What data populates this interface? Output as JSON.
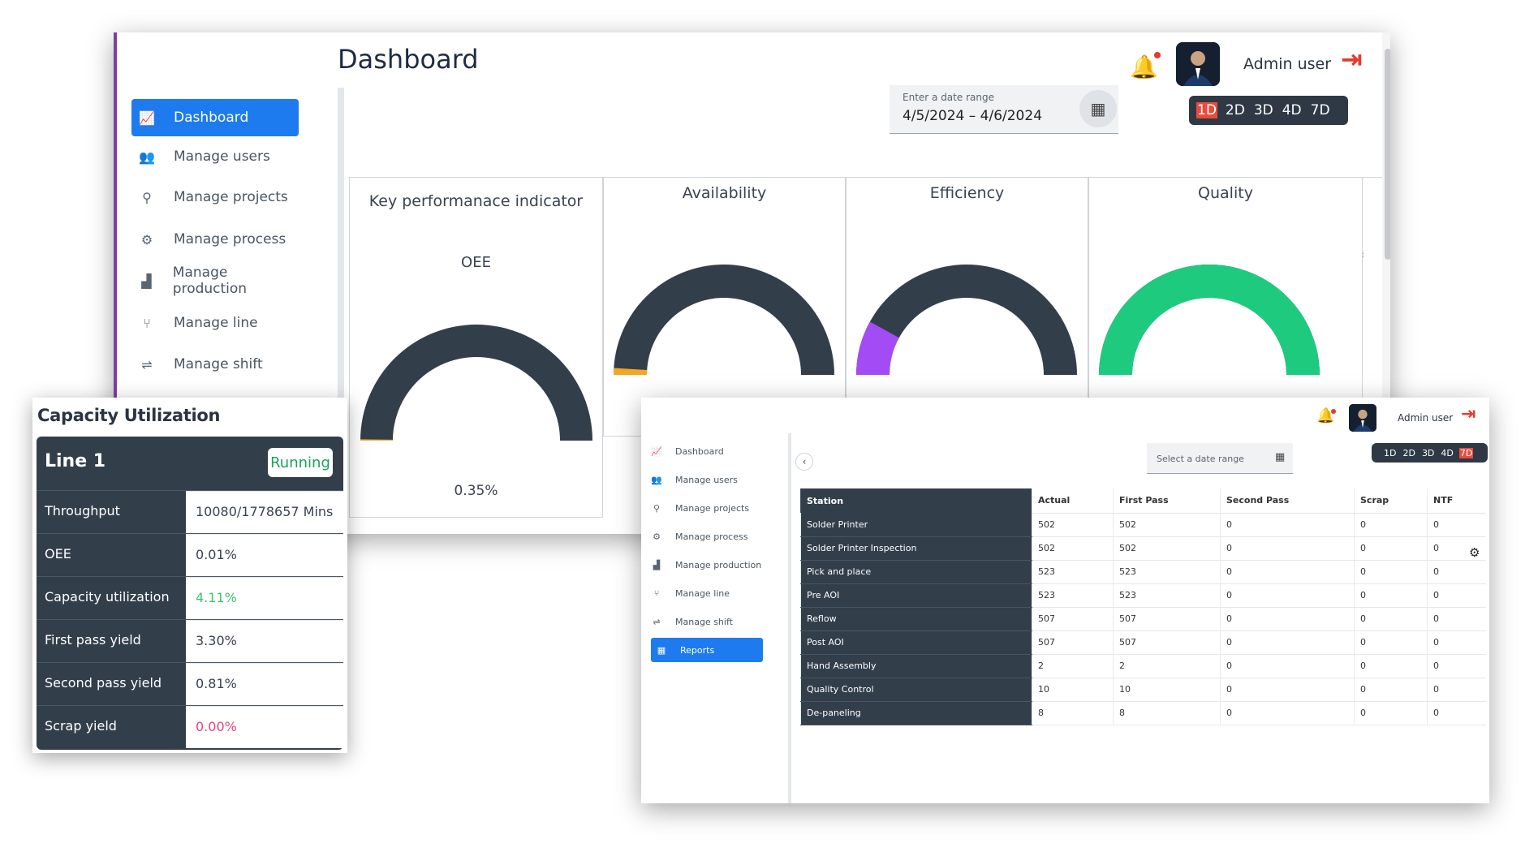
{
  "main": {
    "title": "Dashboard",
    "user_name": "Admin user",
    "sidebar": [
      {
        "label": "Dashboard",
        "icon": "line-chart-icon",
        "glyph": "📈"
      },
      {
        "label": "Manage users",
        "icon": "users-icon",
        "glyph": "👥"
      },
      {
        "label": "Manage projects",
        "icon": "project-tree-icon",
        "glyph": "⚲"
      },
      {
        "label": "Manage process",
        "icon": "chip-icon",
        "glyph": "⚙"
      },
      {
        "label": "Manage production",
        "icon": "factory-icon",
        "glyph": "▟"
      },
      {
        "label": "Manage line",
        "icon": "fork-icon",
        "glyph": "⑂"
      },
      {
        "label": "Manage shift",
        "icon": "shift-icon",
        "glyph": "⇌"
      }
    ],
    "date_range": {
      "label": "Enter a date range",
      "value": "4/5/2024 – 4/6/2024"
    },
    "day_buttons": [
      "1D",
      "2D",
      "3D",
      "4D",
      "7D"
    ],
    "selected_day": "1D",
    "kpi": {
      "title": "Key performanace indicator",
      "subtitle": "OEE",
      "value_text": "0.35%"
    },
    "gauges": [
      {
        "title": "Availability",
        "value": 0.02,
        "color": "#f5a623"
      },
      {
        "title": "Efficiency",
        "value": 0.16,
        "color": "#a34cf5"
      },
      {
        "title": "Quality",
        "value": 1.0,
        "color": "#1ecb7e"
      }
    ],
    "oee_value": 0.0035
  },
  "capacity": {
    "title": "Capacity Utilization",
    "line": "Line 1",
    "status": "Running",
    "rows": [
      {
        "label": "Throughput",
        "value": "10080/1778657 Mins",
        "color": "#3a4350"
      },
      {
        "label": "OEE",
        "value": "0.01%",
        "color": "#3a4350"
      },
      {
        "label": "Capacity utilization",
        "value": "4.11%",
        "color": "#3fc46a"
      },
      {
        "label": "First pass yield",
        "value": "3.30%",
        "color": "#3a4350"
      },
      {
        "label": "Second pass yield",
        "value": "0.81%",
        "color": "#3a4350"
      },
      {
        "label": "Scrap yield",
        "value": "0.00%",
        "color": "#e8457a"
      }
    ]
  },
  "reports": {
    "user_name": "Admin user",
    "sidebar": [
      {
        "label": "Dashboard",
        "icon": "line-chart-icon",
        "glyph": "📈"
      },
      {
        "label": "Manage users",
        "icon": "users-icon",
        "glyph": "👥"
      },
      {
        "label": "Manage projects",
        "icon": "project-tree-icon",
        "glyph": "⚲"
      },
      {
        "label": "Manage process",
        "icon": "chip-icon",
        "glyph": "⚙"
      },
      {
        "label": "Manage production",
        "icon": "factory-icon",
        "glyph": "▟"
      },
      {
        "label": "Manage line",
        "icon": "fork-icon",
        "glyph": "⑂"
      },
      {
        "label": "Manage shift",
        "icon": "shift-icon",
        "glyph": "⇌"
      },
      {
        "label": "Reports",
        "icon": "reports-icon",
        "glyph": "▦"
      }
    ],
    "date_placeholder": "Select a date range",
    "day_buttons": [
      "1D",
      "2D",
      "3D",
      "4D",
      "7D"
    ],
    "selected_day": "7D",
    "columns": [
      "Station",
      "Actual",
      "First Pass",
      "Second Pass",
      "Scrap",
      "NTF"
    ],
    "rows": [
      [
        "Solder Printer",
        "502",
        "502",
        "0",
        "0",
        "0"
      ],
      [
        "Solder Printer Inspection",
        "502",
        "502",
        "0",
        "0",
        "0"
      ],
      [
        "Pick and place",
        "523",
        "523",
        "0",
        "0",
        "0"
      ],
      [
        "Pre AOI",
        "523",
        "523",
        "0",
        "0",
        "0"
      ],
      [
        "Reflow",
        "507",
        "507",
        "0",
        "0",
        "0"
      ],
      [
        "Post AOI",
        "507",
        "507",
        "0",
        "0",
        "0"
      ],
      [
        "Hand Assembly",
        "2",
        "2",
        "0",
        "0",
        "0"
      ],
      [
        "Quality Control",
        "10",
        "10",
        "0",
        "0",
        "0"
      ],
      [
        "De-paneling",
        "8",
        "8",
        "0",
        "0",
        "0"
      ]
    ]
  }
}
